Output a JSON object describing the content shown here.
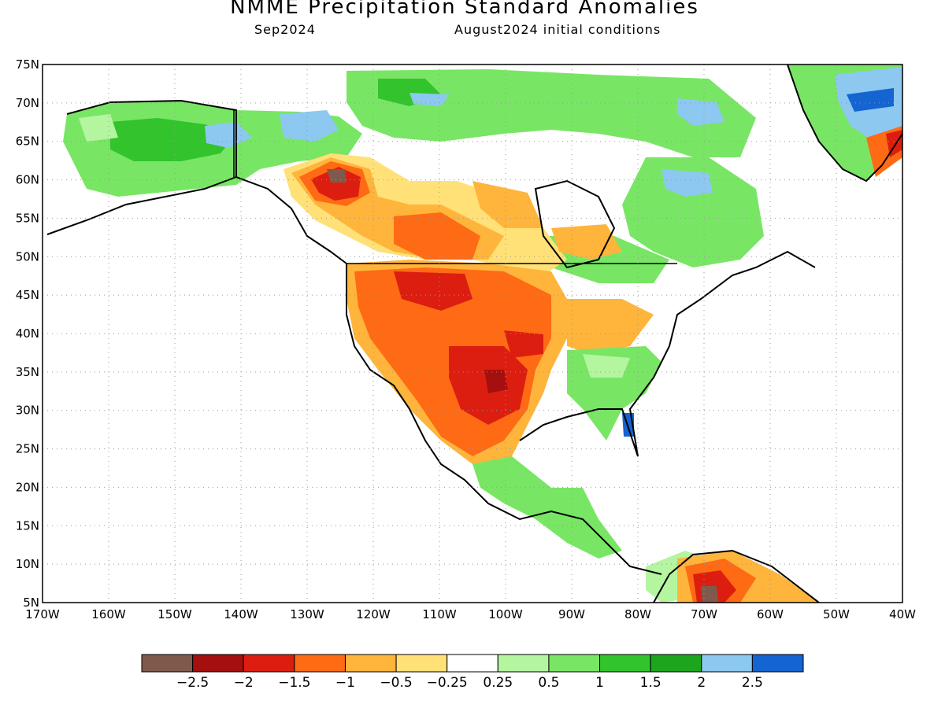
{
  "title": "NMME Precipitation Standard Anomalies",
  "target_month": "Sep2024",
  "initial_conditions": "August2024 initial conditions",
  "map": {
    "lon_range": [
      -170,
      -40
    ],
    "lat_range": [
      5,
      75
    ],
    "lat_ticks": [
      "5N",
      "10N",
      "15N",
      "20N",
      "25N",
      "30N",
      "35N",
      "40N",
      "45N",
      "50N",
      "55N",
      "60N",
      "65N",
      "70N",
      "75N"
    ],
    "lon_ticks": [
      "170W",
      "160W",
      "150W",
      "140W",
      "130W",
      "120W",
      "110W",
      "100W",
      "90W",
      "80W",
      "70W",
      "60W",
      "50W",
      "40W"
    ],
    "gridlines": "dotted"
  },
  "colorbar": {
    "colors": [
      "#7f5a4c",
      "#a50f0f",
      "#dc1e10",
      "#ff6a14",
      "#ffb43c",
      "#ffe178",
      "#ffffff",
      "#b4f5a0",
      "#78e664",
      "#32c32d",
      "#1ea51e",
      "#8cc8f0",
      "#1464d2"
    ],
    "labels": [
      "−2.5",
      "−2",
      "−1.5",
      "−1",
      "−0.5",
      "−0.25",
      "0.25",
      "0.5",
      "1",
      "1.5",
      "2",
      "2.5"
    ]
  }
}
